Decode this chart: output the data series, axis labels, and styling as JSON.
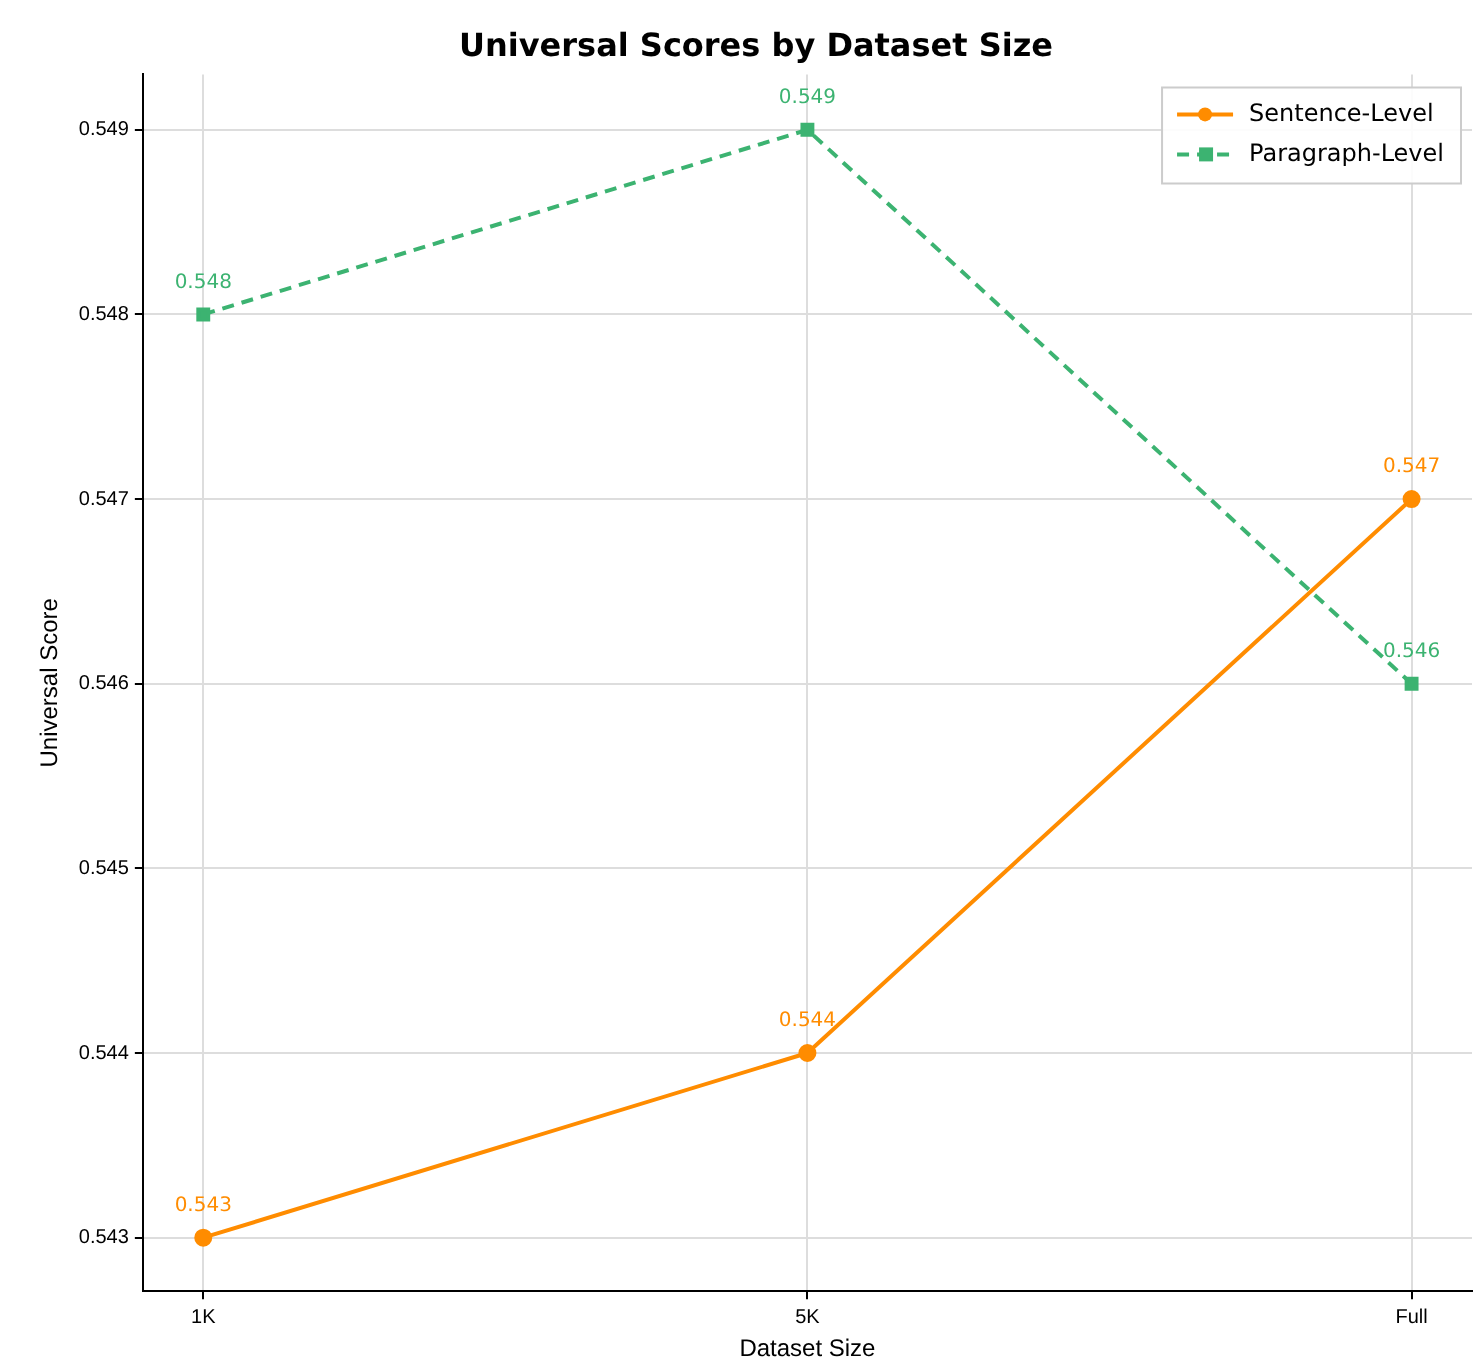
{
  "chart_data": {
    "type": "line",
    "title": "Universal Scores by Dataset Size",
    "xlabel": "Dataset Size",
    "ylabel": "Universal Score",
    "categories": [
      "1K",
      "5K",
      "Full"
    ],
    "series": [
      {
        "name": "Sentence-Level",
        "color": "#ff8c00",
        "values": [
          0.543,
          0.544,
          0.547
        ],
        "marker": "circle",
        "line_style": "solid"
      },
      {
        "name": "Paragraph-Level",
        "color": "#3cb371",
        "values": [
          0.548,
          0.549,
          0.546
        ],
        "marker": "square",
        "line_style": "dashed"
      }
    ],
    "ylim": [
      0.54271,
      0.5493
    ],
    "yticks": [
      0.543,
      0.544,
      0.545,
      0.546,
      0.547,
      0.548,
      0.549
    ],
    "grid": true,
    "legend": "top right",
    "data_labels": true
  }
}
